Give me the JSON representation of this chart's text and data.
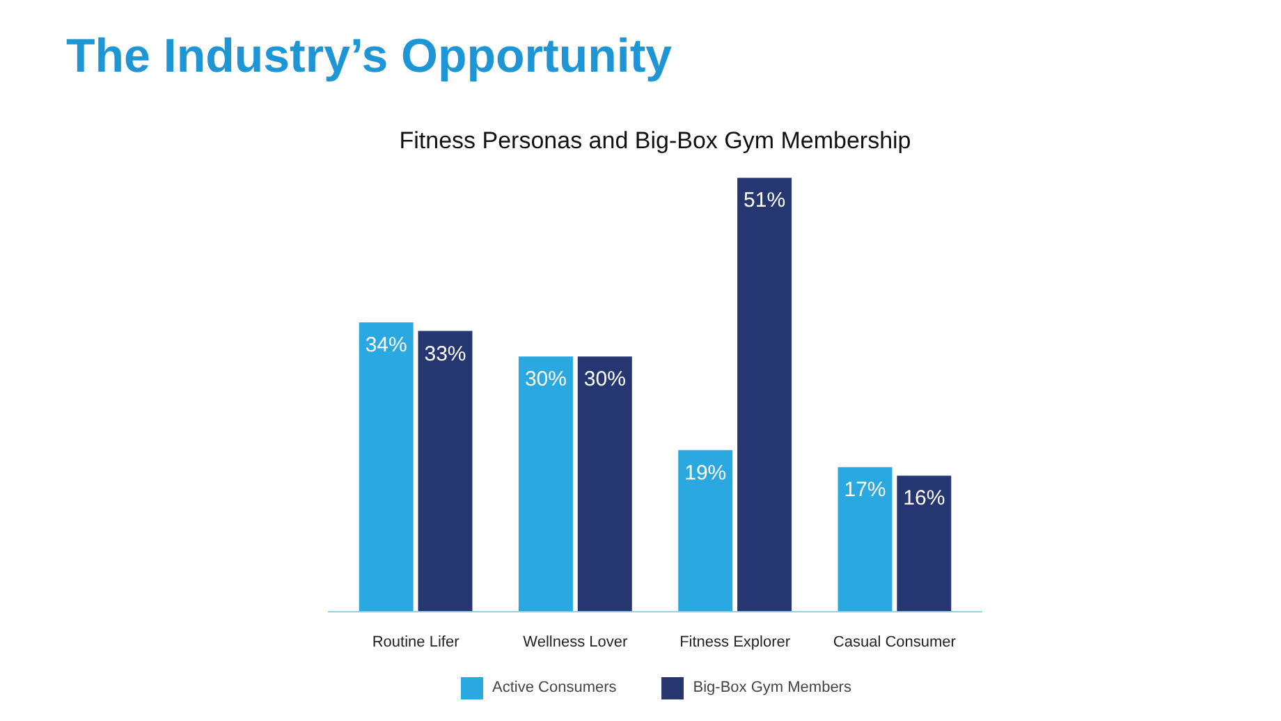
{
  "chart_data": {
    "type": "bar",
    "title": "The Industry’s Opportunity",
    "subtitle": "Fitness Personas and Big-Box Gym Membership",
    "categories": [
      "Routine Lifer",
      "Wellness Lover",
      "Fitness Explorer",
      "Casual Consumer"
    ],
    "series": [
      {
        "name": "Active Consumers",
        "color": "#2aa8e0",
        "values": [
          34,
          30,
          19,
          17
        ],
        "value_labels": [
          "34%",
          "30%",
          "19%",
          "17%"
        ]
      },
      {
        "name": "Big-Box Gym Members",
        "color": "#253670",
        "values": [
          33,
          30,
          51,
          16
        ],
        "value_labels": [
          "33%",
          "30%",
          "51%",
          "16%"
        ]
      }
    ],
    "legend": "bottom"
  }
}
